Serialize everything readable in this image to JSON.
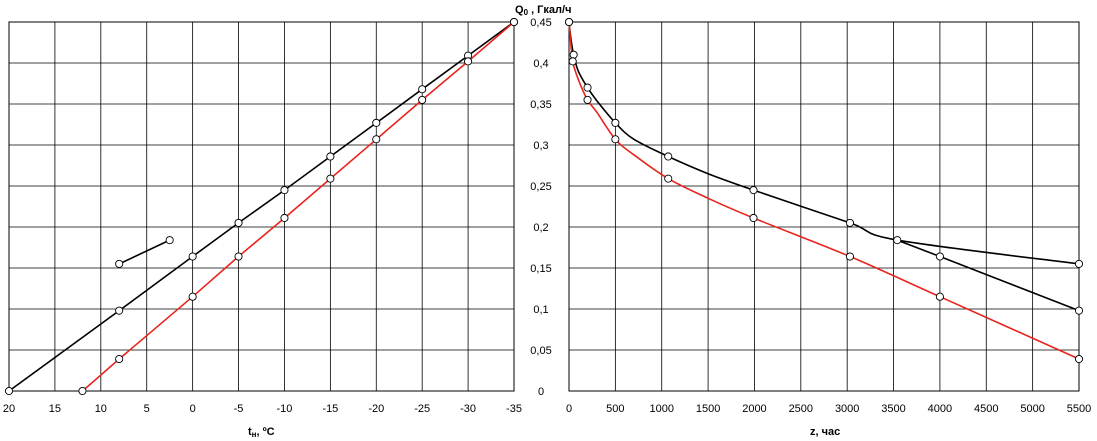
{
  "chart_data": [
    {
      "type": "line",
      "xlabel": "t",
      "xlabel_sub": "н",
      "xlabel_unit": ", ºС",
      "xlim": [
        20,
        -35
      ],
      "x_reversed": true,
      "x_ticks": [
        20,
        15,
        10,
        5,
        0,
        -5,
        -10,
        -15,
        -20,
        -25,
        -30,
        -35
      ],
      "x_tick_labels": [
        "20",
        "15",
        "10",
        "5",
        "0",
        "-5",
        "-10",
        "-15",
        "-20",
        "-25",
        "-30",
        "-35"
      ],
      "ylim": [
        0,
        0.45
      ],
      "grid": true,
      "series": [
        {
          "color": "#000000",
          "marker": "circle-open",
          "x": [
            20,
            8,
            0,
            -5,
            -10,
            -15,
            -20,
            -25,
            -30,
            -35
          ],
          "y": [
            0,
            0.098,
            0.164,
            0.205,
            0.245,
            0.286,
            0.327,
            0.368,
            0.409,
            0.45
          ]
        },
        {
          "color": "#000000",
          "marker": "circle-open",
          "x": [
            8,
            2.5
          ],
          "y": [
            0.155,
            0.184
          ]
        },
        {
          "color": "#e8241d",
          "marker": "circle-open",
          "x": [
            12,
            8,
            0,
            -5,
            -10,
            -15,
            -20,
            -25,
            -30,
            -35
          ],
          "y": [
            0,
            0.039,
            0.115,
            0.164,
            0.211,
            0.259,
            0.307,
            0.355,
            0.402,
            0.45
          ]
        }
      ]
    },
    {
      "type": "line",
      "ylabel": "Q",
      "ylabel_sub": "0",
      "ylabel_unit": " , Гкал/ч",
      "xlabel": "z, час",
      "xlim": [
        0,
        5500
      ],
      "x_ticks": [
        0,
        500,
        1000,
        1500,
        2000,
        2500,
        3000,
        3500,
        4000,
        4500,
        5000,
        5500
      ],
      "x_tick_labels": [
        "0",
        "500",
        "1000",
        "1500",
        "2000",
        "2500",
        "3000",
        "3500",
        "4000",
        "4500",
        "5000",
        "5500"
      ],
      "ylim": [
        0,
        0.45
      ],
      "y_ticks": [
        0,
        0.05,
        0.1,
        0.15,
        0.2,
        0.25,
        0.3,
        0.35,
        0.4,
        0.45
      ],
      "y_tick_labels": [
        "0",
        "0,05",
        "0,1",
        "0,15",
        "0,2",
        "0,25",
        "0,3",
        "0,35",
        "0,4",
        "0,45"
      ],
      "grid": true,
      "series": [
        {
          "color": "#000000",
          "marker": "circle-open",
          "curve": [
            [
              0,
              0.45
            ],
            [
              20,
              0.43
            ],
            [
              50,
              0.41
            ],
            [
              100,
              0.39
            ],
            [
              200,
              0.37
            ],
            [
              300,
              0.354
            ],
            [
              500,
              0.327
            ],
            [
              700,
              0.307
            ],
            [
              1070,
              0.286
            ],
            [
              1500,
              0.265
            ],
            [
              1990,
              0.245
            ],
            [
              3030,
              0.205
            ],
            [
              3540,
              0.184
            ],
            [
              5500,
              0.155
            ]
          ],
          "points": [
            [
              0,
              0.45
            ],
            [
              50,
              0.41
            ],
            [
              200,
              0.37
            ],
            [
              500,
              0.327
            ],
            [
              1070,
              0.286
            ],
            [
              1990,
              0.245
            ],
            [
              3030,
              0.205
            ],
            [
              3540,
              0.184
            ],
            [
              5500,
              0.155
            ]
          ]
        },
        {
          "color": "#000000",
          "marker": "circle-open",
          "curve": [
            [
              3540,
              0.184
            ],
            [
              4000,
              0.164
            ],
            [
              5500,
              0.098
            ]
          ],
          "points": [
            [
              4000,
              0.164
            ],
            [
              5500,
              0.098
            ]
          ]
        },
        {
          "color": "#e8241d",
          "marker": "circle-open",
          "curve": [
            [
              0,
              0.45
            ],
            [
              15,
              0.43
            ],
            [
              40,
              0.402
            ],
            [
              100,
              0.38
            ],
            [
              200,
              0.355
            ],
            [
              300,
              0.34
            ],
            [
              500,
              0.307
            ],
            [
              700,
              0.288
            ],
            [
              1070,
              0.259
            ],
            [
              1500,
              0.235
            ],
            [
              1990,
              0.211
            ],
            [
              3030,
              0.164
            ],
            [
              4000,
              0.115
            ],
            [
              5500,
              0.039
            ]
          ],
          "points": [
            [
              0,
              0.45
            ],
            [
              40,
              0.402
            ],
            [
              200,
              0.355
            ],
            [
              500,
              0.307
            ],
            [
              1070,
              0.259
            ],
            [
              1990,
              0.211
            ],
            [
              3030,
              0.164
            ],
            [
              4000,
              0.115
            ],
            [
              5500,
              0.039
            ]
          ]
        }
      ]
    }
  ]
}
